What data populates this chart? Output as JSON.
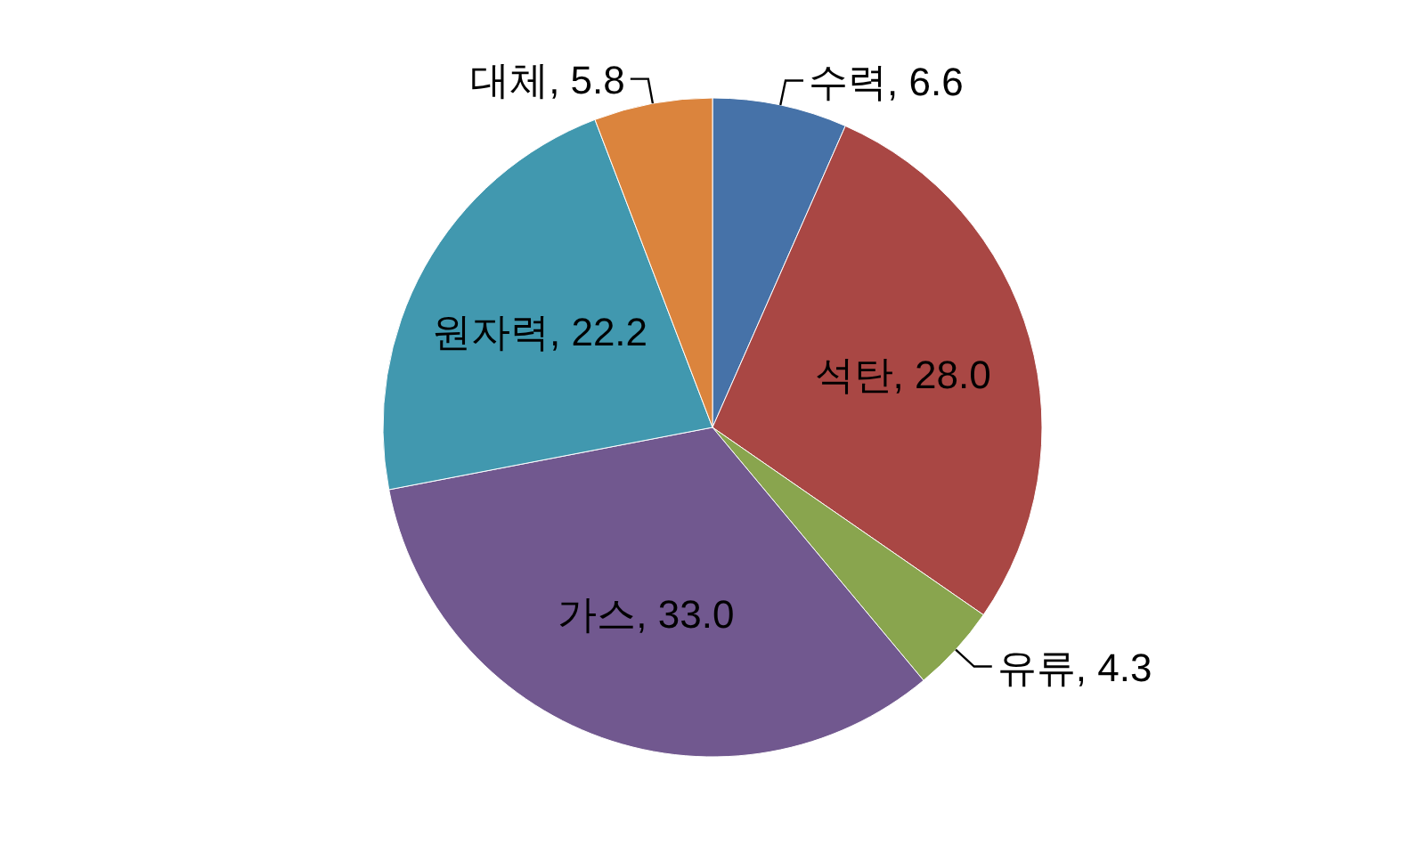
{
  "chart_data": {
    "type": "pie",
    "categories": [
      "수력",
      "석탄",
      "유류",
      "가스",
      "원자력",
      "대체"
    ],
    "values": [
      6.6,
      28.0,
      4.3,
      33.0,
      22.2,
      5.8
    ],
    "value_labels": [
      "6.6",
      "28.0",
      "4.3",
      "33.0",
      "22.2",
      "5.8"
    ],
    "colors": [
      "#4672a8",
      "#a94744",
      "#89a54e",
      "#71588f",
      "#4198af",
      "#db843d"
    ]
  }
}
